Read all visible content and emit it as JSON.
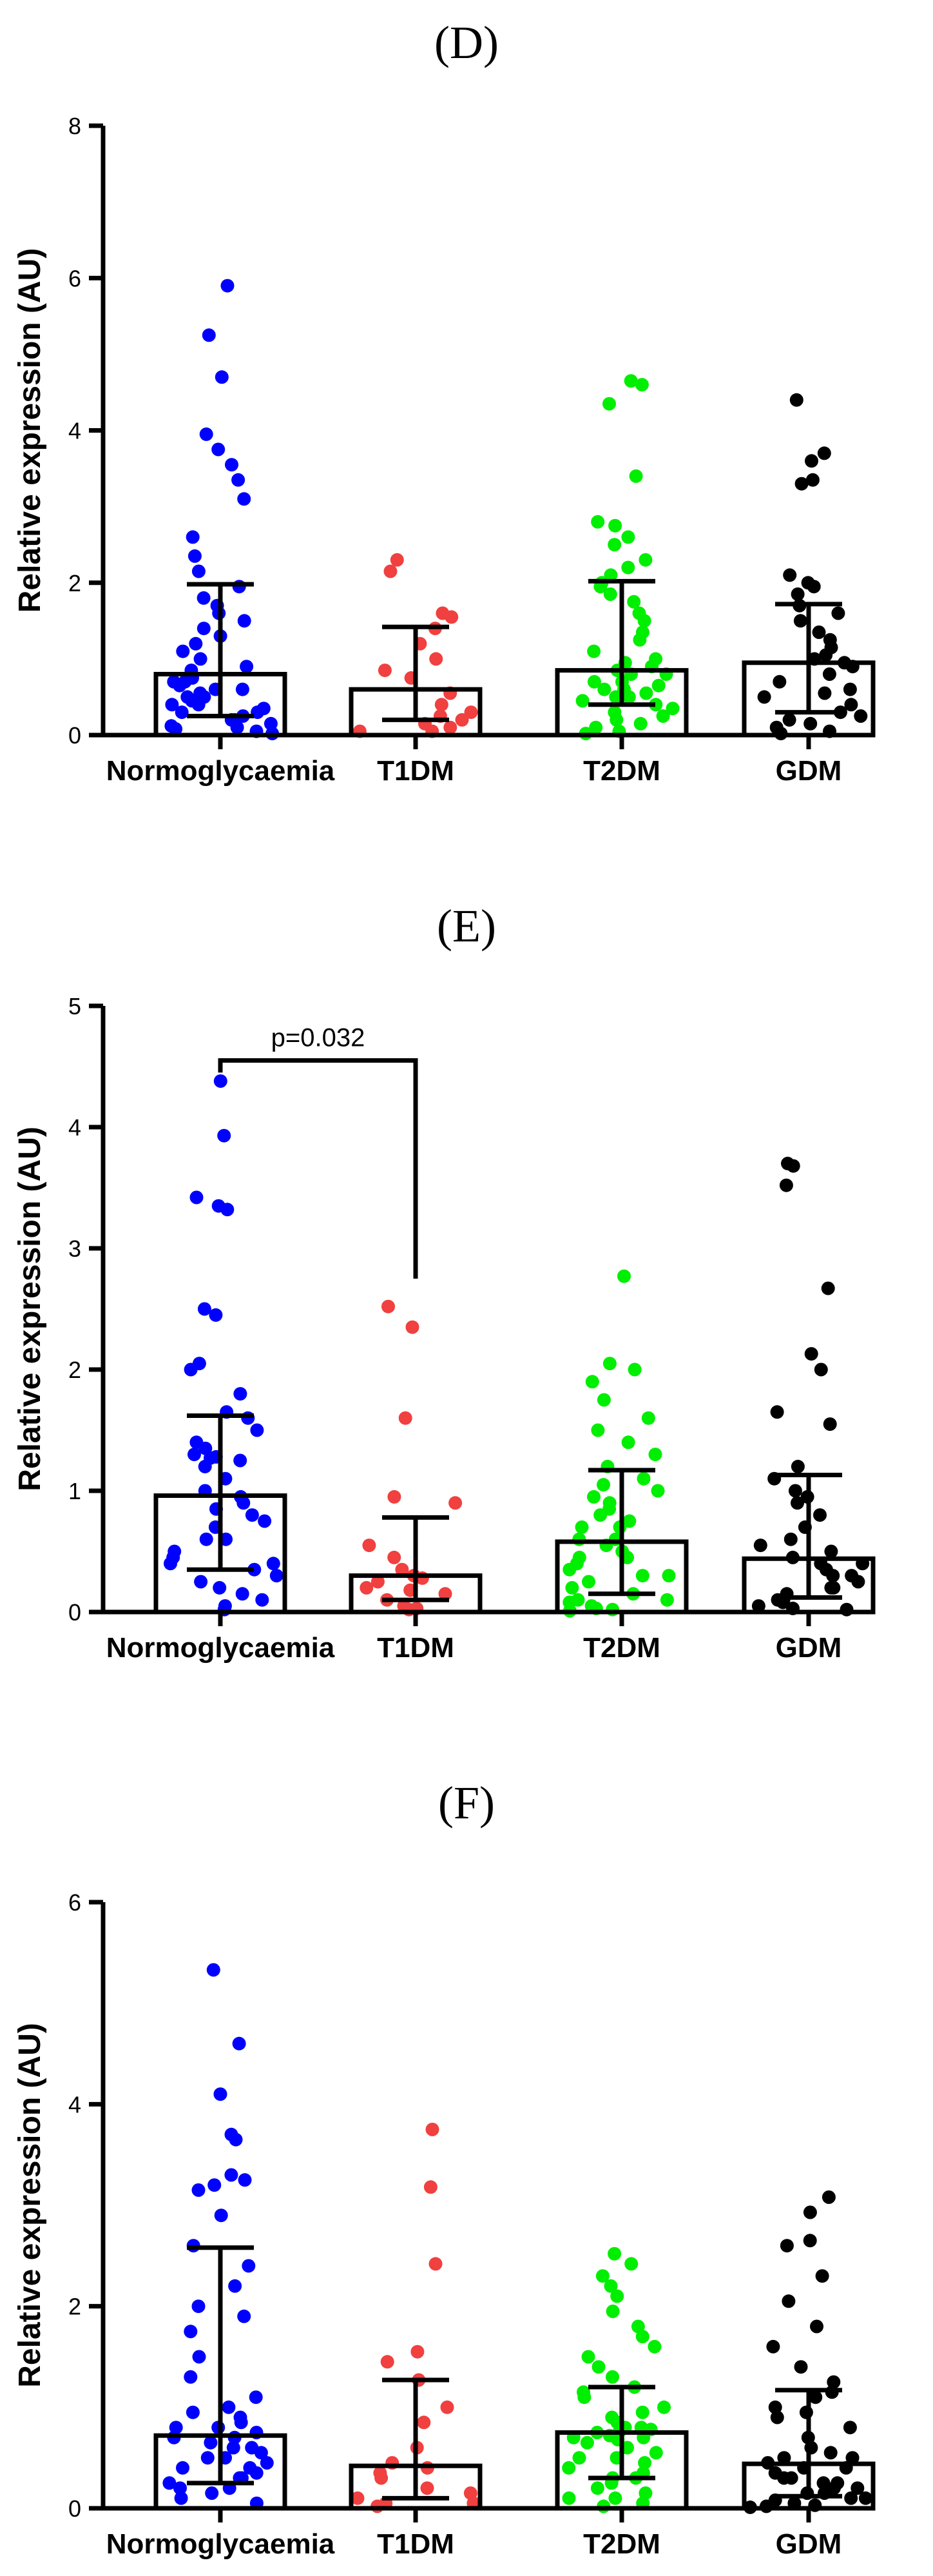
{
  "chart_data": [
    {
      "type": "scatter",
      "panel": "(D)",
      "ylabel": "Relative expression (AU)",
      "ylim": [
        0,
        8
      ],
      "yticks": [
        0,
        2,
        4,
        6,
        8
      ],
      "categories": [
        "Normoglycaemia",
        "T1DM",
        "T2DM",
        "GDM"
      ],
      "series": [
        {
          "name": "Normoglycaemia",
          "color": "#0000FF",
          "bar": 0.8,
          "err_low": 0.25,
          "err_high": 1.98,
          "values": [
            5.9,
            5.25,
            4.7,
            3.95,
            3.75,
            3.55,
            3.35,
            3.1,
            2.6,
            2.35,
            2.15,
            1.95,
            1.8,
            1.7,
            1.6,
            1.5,
            1.4,
            1.3,
            1.2,
            1.1,
            1.0,
            0.9,
            0.85,
            0.75,
            0.7,
            0.65,
            0.6,
            0.55,
            0.5,
            0.45,
            0.4,
            0.35,
            0.3,
            0.25,
            0.2,
            0.15,
            0.1,
            0.05,
            0.02,
            0.4,
            0.3,
            0.2,
            0.12,
            0.08,
            0.5,
            0.6,
            0.7
          ]
        },
        {
          "name": "T1DM",
          "color": "#F04040",
          "bar": 0.6,
          "err_low": 0.2,
          "err_high": 1.42,
          "values": [
            2.3,
            2.15,
            1.6,
            1.55,
            1.4,
            1.2,
            1.0,
            0.85,
            0.75,
            0.55,
            0.4,
            0.3,
            0.25,
            0.2,
            0.15,
            0.1,
            0.05,
            0.05
          ]
        },
        {
          "name": "T2DM",
          "color": "#00EE00",
          "bar": 0.85,
          "err_low": 0.4,
          "err_high": 2.02,
          "values": [
            4.65,
            4.6,
            4.35,
            3.4,
            2.8,
            2.75,
            2.6,
            2.5,
            2.3,
            2.2,
            2.1,
            2.0,
            1.95,
            1.85,
            1.75,
            1.6,
            1.5,
            1.35,
            1.25,
            1.1,
            1.0,
            0.95,
            0.9,
            0.85,
            0.8,
            0.7,
            0.65,
            0.6,
            0.55,
            0.5,
            0.45,
            0.4,
            0.35,
            0.3,
            0.25,
            0.2,
            0.15,
            0.1,
            0.05,
            0.02,
            0.6,
            0.5,
            0.7,
            0.8
          ]
        },
        {
          "name": "GDM",
          "color": "#000000",
          "bar": 0.95,
          "err_low": 0.3,
          "err_high": 1.72,
          "values": [
            4.4,
            3.7,
            3.6,
            3.35,
            3.3,
            2.1,
            2.0,
            1.95,
            1.85,
            1.7,
            1.6,
            1.5,
            1.35,
            1.25,
            1.15,
            1.05,
            1.0,
            0.95,
            0.9,
            0.8,
            0.7,
            0.6,
            0.55,
            0.5,
            0.4,
            0.3,
            0.25,
            0.2,
            0.15,
            0.1,
            0.05,
            0.02
          ]
        }
      ]
    },
    {
      "type": "scatter",
      "panel": "(E)",
      "ylabel": "Relative expression (AU)",
      "ylim": [
        0,
        5
      ],
      "yticks": [
        0,
        1,
        2,
        3,
        4,
        5
      ],
      "categories": [
        "Normoglycaemia",
        "T1DM",
        "T2DM",
        "GDM"
      ],
      "annotation": {
        "text": "p=0.032",
        "from": 0,
        "to": 1,
        "y": 4.55,
        "drop_from": 4.45,
        "drop_to": 2.75
      },
      "series": [
        {
          "name": "Normoglycaemia",
          "color": "#0000FF",
          "bar": 0.96,
          "err_low": 0.35,
          "err_high": 1.62,
          "values": [
            4.38,
            3.93,
            3.42,
            3.35,
            3.32,
            2.5,
            2.45,
            2.05,
            2.0,
            1.8,
            1.65,
            1.6,
            1.5,
            1.35,
            1.3,
            1.28,
            1.25,
            1.2,
            1.1,
            1.0,
            0.95,
            0.9,
            0.85,
            0.8,
            0.7,
            0.6,
            0.5,
            0.45,
            0.4,
            0.35,
            0.3,
            0.25,
            0.2,
            0.15,
            0.1,
            0.05,
            0.02,
            0.4,
            0.6,
            0.75,
            1.4,
            1.27
          ]
        },
        {
          "name": "T1DM",
          "color": "#F04040",
          "bar": 0.3,
          "err_low": 0.1,
          "err_high": 0.78,
          "values": [
            2.52,
            2.35,
            1.6,
            0.95,
            0.9,
            0.55,
            0.45,
            0.35,
            0.3,
            0.28,
            0.25,
            0.2,
            0.18,
            0.15,
            0.1,
            0.05,
            0.03,
            0.02
          ]
        },
        {
          "name": "T2DM",
          "color": "#00EE00",
          "bar": 0.58,
          "err_low": 0.15,
          "err_high": 1.17,
          "values": [
            2.77,
            2.05,
            2.0,
            1.9,
            1.75,
            1.6,
            1.5,
            1.4,
            1.3,
            1.2,
            1.1,
            1.05,
            1.0,
            0.95,
            0.9,
            0.85,
            0.8,
            0.75,
            0.7,
            0.6,
            0.55,
            0.5,
            0.45,
            0.4,
            0.35,
            0.3,
            0.25,
            0.2,
            0.15,
            0.1,
            0.08,
            0.05,
            0.03,
            0.02,
            0.01,
            0.6,
            0.45,
            0.7,
            0.3,
            0.1
          ]
        },
        {
          "name": "GDM",
          "color": "#000000",
          "bar": 0.44,
          "err_low": 0.12,
          "err_high": 1.13,
          "values": [
            3.7,
            3.68,
            3.52,
            2.67,
            2.13,
            2.0,
            1.65,
            1.55,
            1.2,
            1.1,
            1.0,
            0.95,
            0.9,
            0.8,
            0.7,
            0.6,
            0.55,
            0.5,
            0.45,
            0.4,
            0.35,
            0.3,
            0.25,
            0.2,
            0.15,
            0.1,
            0.08,
            0.05,
            0.03,
            0.02,
            0.4,
            0.3,
            0.2,
            0.1
          ]
        }
      ]
    },
    {
      "type": "scatter",
      "panel": "(F)",
      "ylabel": "Relative expression (AU)",
      "ylim": [
        0,
        6
      ],
      "yticks": [
        0,
        2,
        4,
        6
      ],
      "categories": [
        "Normoglycaemia",
        "T1DM",
        "T2DM",
        "GDM"
      ],
      "series": [
        {
          "name": "Normoglycaemia",
          "color": "#0000FF",
          "bar": 0.72,
          "err_low": 0.25,
          "err_high": 2.58,
          "values": [
            5.33,
            4.6,
            4.1,
            3.7,
            3.65,
            3.3,
            3.25,
            3.2,
            3.15,
            2.9,
            2.6,
            2.4,
            2.2,
            2.0,
            1.9,
            1.75,
            1.5,
            1.3,
            1.1,
            1.0,
            0.95,
            0.9,
            0.85,
            0.8,
            0.75,
            0.7,
            0.65,
            0.6,
            0.55,
            0.5,
            0.45,
            0.4,
            0.35,
            0.3,
            0.25,
            0.2,
            0.15,
            0.1,
            0.05,
            0.6,
            0.5,
            0.4,
            0.3,
            0.2,
            0.7,
            0.8
          ]
        },
        {
          "name": "T1DM",
          "color": "#F04040",
          "bar": 0.42,
          "err_low": 0.1,
          "err_high": 1.27,
          "values": [
            3.75,
            3.18,
            2.42,
            1.55,
            1.45,
            1.27,
            1.0,
            0.85,
            0.6,
            0.45,
            0.4,
            0.35,
            0.3,
            0.2,
            0.15,
            0.1,
            0.05,
            0.05,
            0.02
          ]
        },
        {
          "name": "T2DM",
          "color": "#00EE00",
          "bar": 0.75,
          "err_low": 0.3,
          "err_high": 1.2,
          "values": [
            2.52,
            2.42,
            2.3,
            2.2,
            2.1,
            1.95,
            1.8,
            1.7,
            1.6,
            1.5,
            1.4,
            1.3,
            1.2,
            1.15,
            1.1,
            1.0,
            0.95,
            0.9,
            0.85,
            0.8,
            0.78,
            0.75,
            0.72,
            0.7,
            0.68,
            0.65,
            0.6,
            0.55,
            0.5,
            0.45,
            0.4,
            0.35,
            0.3,
            0.25,
            0.2,
            0.15,
            0.1,
            0.05,
            0.02,
            0.8,
            0.75,
            0.7,
            0.5,
            0.3,
            0.1
          ]
        },
        {
          "name": "GDM",
          "color": "#000000",
          "bar": 0.44,
          "err_low": 0.12,
          "err_high": 1.17,
          "values": [
            3.08,
            2.93,
            2.65,
            2.6,
            2.3,
            2.05,
            1.8,
            1.6,
            1.4,
            1.25,
            1.15,
            1.1,
            1.0,
            0.95,
            0.9,
            0.8,
            0.7,
            0.6,
            0.55,
            0.5,
            0.45,
            0.4,
            0.35,
            0.3,
            0.25,
            0.2,
            0.15,
            0.1,
            0.08,
            0.05,
            0.03,
            0.02,
            0.01,
            0.3,
            0.2,
            0.1,
            0.4,
            0.5,
            0.25,
            0.15
          ]
        }
      ]
    }
  ]
}
